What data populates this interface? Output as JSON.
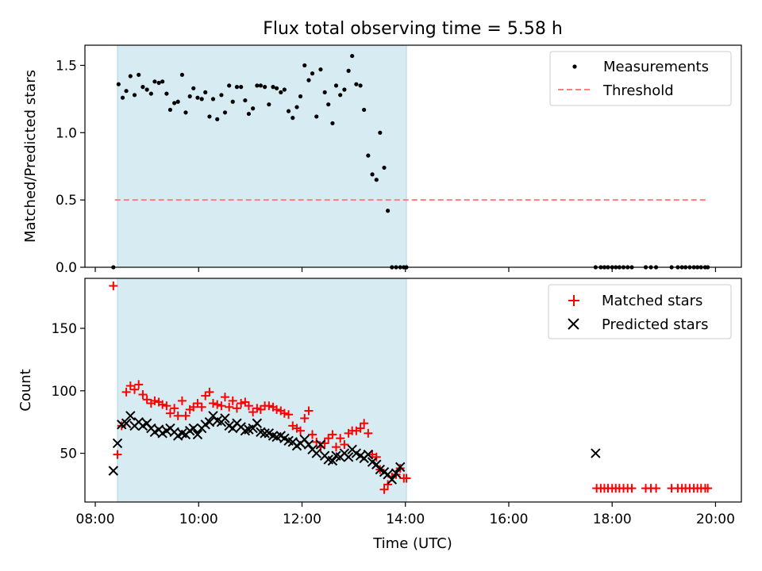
{
  "title": "Flux total observing time = 5.58 h",
  "chart_data": [
    {
      "type": "scatter",
      "ylabel": "Matched/Predicted stars",
      "xlim": [
        7.8,
        20.5
      ],
      "ylim": [
        0.0,
        1.65
      ],
      "yticks": [
        0.0,
        0.5,
        1.0,
        1.5
      ],
      "ytick_labels": [
        "0.0",
        "0.5",
        "1.0",
        "1.5"
      ],
      "legend_position": "top-right",
      "shaded_interval": [
        8.43,
        14.02
      ],
      "threshold": {
        "name": "Threshold",
        "value": 0.5,
        "x_range": [
          8.38,
          19.85
        ],
        "color": "#ff7f7f"
      },
      "series": [
        {
          "name": "Measurements",
          "color": "#000000",
          "marker": "dot",
          "x": [
            8.35,
            8.45,
            8.53,
            8.6,
            8.68,
            8.76,
            8.84,
            8.92,
            9.0,
            9.08,
            9.15,
            9.23,
            9.3,
            9.38,
            9.45,
            9.53,
            9.6,
            9.68,
            9.75,
            9.83,
            9.9,
            9.98,
            10.06,
            10.13,
            10.21,
            10.28,
            10.36,
            10.44,
            10.51,
            10.59,
            10.66,
            10.74,
            10.82,
            10.9,
            10.97,
            11.05,
            11.13,
            11.2,
            11.28,
            11.36,
            11.44,
            11.51,
            11.59,
            11.66,
            11.74,
            11.82,
            11.9,
            11.97,
            12.05,
            12.13,
            12.2,
            12.28,
            12.36,
            12.44,
            12.51,
            12.59,
            12.66,
            12.74,
            12.82,
            12.9,
            12.97,
            13.05,
            13.13,
            13.2,
            13.28,
            13.36,
            13.44,
            13.51,
            13.59,
            13.66,
            13.74,
            13.82,
            13.9,
            13.97,
            14.02,
            17.68,
            17.78,
            17.85,
            17.92,
            18.0,
            18.07,
            18.14,
            18.22,
            18.3,
            18.38,
            18.65,
            18.75,
            18.85,
            19.15,
            19.27,
            19.35,
            19.42,
            19.5,
            19.58,
            19.65,
            19.72,
            19.8,
            19.85
          ],
          "y": [
            0.0,
            1.36,
            1.26,
            1.31,
            1.42,
            1.28,
            1.43,
            1.34,
            1.32,
            1.29,
            1.38,
            1.37,
            1.38,
            1.29,
            1.17,
            1.22,
            1.23,
            1.43,
            1.15,
            1.27,
            1.33,
            1.26,
            1.25,
            1.3,
            1.12,
            1.25,
            1.1,
            1.28,
            1.15,
            1.35,
            1.23,
            1.34,
            1.34,
            1.24,
            1.14,
            1.18,
            1.35,
            1.35,
            1.34,
            1.21,
            1.34,
            1.33,
            1.3,
            1.32,
            1.16,
            1.11,
            1.19,
            1.27,
            1.5,
            1.39,
            1.44,
            1.12,
            1.47,
            1.3,
            1.21,
            1.07,
            1.35,
            1.28,
            1.32,
            1.46,
            1.57,
            1.36,
            1.35,
            1.17,
            0.83,
            0.69,
            0.65,
            1.0,
            0.74,
            0.42,
            0.0,
            0.0,
            0.0,
            0.0,
            0.0,
            0.0,
            0.0,
            0.0,
            0.0,
            0.0,
            0.0,
            0.0,
            0.0,
            0.0,
            0.0,
            0.0,
            0.0,
            0.0,
            0.0,
            0.0,
            0.0,
            0.0,
            0.0,
            0.0,
            0.0,
            0.0,
            0.0,
            0.0
          ]
        }
      ]
    },
    {
      "type": "scatter",
      "xlabel": "Time (UTC)",
      "ylabel": "Count",
      "xlim": [
        7.8,
        20.5
      ],
      "ylim": [
        11,
        190
      ],
      "xticks": [
        8,
        10,
        12,
        14,
        16,
        18,
        20
      ],
      "xtick_labels": [
        "08:00",
        "10:00",
        "12:00",
        "14:00",
        "16:00",
        "18:00",
        "20:00"
      ],
      "yticks": [
        50,
        100,
        150
      ],
      "ytick_labels": [
        "50",
        "100",
        "150"
      ],
      "legend_position": "top-right",
      "shaded_interval": [
        8.43,
        14.02
      ],
      "series": [
        {
          "name": "Matched stars",
          "color": "#ff0000",
          "marker": "plus",
          "x": [
            8.35,
            8.43,
            8.51,
            8.6,
            8.68,
            8.76,
            8.84,
            8.92,
            9.0,
            9.08,
            9.15,
            9.23,
            9.3,
            9.38,
            9.45,
            9.53,
            9.6,
            9.68,
            9.75,
            9.83,
            9.9,
            9.98,
            10.06,
            10.13,
            10.21,
            10.28,
            10.36,
            10.44,
            10.51,
            10.59,
            10.66,
            10.74,
            10.82,
            10.9,
            10.97,
            11.05,
            11.13,
            11.2,
            11.28,
            11.36,
            11.44,
            11.51,
            11.59,
            11.66,
            11.74,
            11.82,
            11.9,
            11.97,
            12.05,
            12.13,
            12.2,
            12.28,
            12.36,
            12.44,
            12.51,
            12.59,
            12.66,
            12.74,
            12.82,
            12.9,
            12.97,
            13.05,
            13.13,
            13.2,
            13.28,
            13.36,
            13.44,
            13.51,
            13.59,
            13.66,
            13.74,
            13.82,
            13.9,
            13.97,
            14.02,
            17.7,
            17.78,
            17.85,
            17.92,
            18.0,
            18.07,
            18.14,
            18.22,
            18.3,
            18.38,
            18.65,
            18.75,
            18.85,
            19.15,
            19.27,
            19.35,
            19.42,
            19.5,
            19.58,
            19.65,
            19.72,
            19.8,
            19.85
          ],
          "y": [
            184,
            49,
            72,
            99,
            104,
            101,
            105,
            97,
            93,
            90,
            92,
            91,
            89,
            88,
            82,
            86,
            80,
            92,
            80,
            85,
            87,
            90,
            87,
            96,
            99,
            90,
            89,
            88,
            95,
            87,
            92,
            86,
            90,
            91,
            88,
            83,
            86,
            85,
            88,
            88,
            87,
            85,
            84,
            82,
            81,
            72,
            70,
            68,
            78,
            84,
            65,
            59,
            55,
            58,
            62,
            65,
            55,
            62,
            57,
            66,
            68,
            68,
            70,
            74,
            66,
            49,
            47,
            37,
            21,
            25,
            31,
            33,
            38,
            30,
            30,
            22,
            22,
            22,
            22,
            22,
            22,
            22,
            22,
            22,
            22,
            22,
            22,
            22,
            22,
            22,
            22,
            22,
            22,
            22,
            22,
            22,
            22,
            22
          ],
          "note": ""
        },
        {
          "name": "Predicted stars",
          "color": "#000000",
          "marker": "x",
          "x": [
            8.35,
            8.43,
            8.51,
            8.6,
            8.68,
            8.76,
            8.84,
            8.92,
            9.0,
            9.08,
            9.15,
            9.23,
            9.3,
            9.38,
            9.45,
            9.53,
            9.6,
            9.68,
            9.75,
            9.83,
            9.9,
            9.98,
            10.06,
            10.13,
            10.21,
            10.28,
            10.36,
            10.44,
            10.51,
            10.59,
            10.66,
            10.74,
            10.82,
            10.9,
            10.97,
            11.05,
            11.13,
            11.2,
            11.28,
            11.36,
            11.44,
            11.51,
            11.59,
            11.66,
            11.74,
            11.82,
            11.9,
            11.97,
            12.05,
            12.13,
            12.2,
            12.28,
            12.36,
            12.44,
            12.51,
            12.59,
            12.66,
            12.74,
            12.82,
            12.9,
            12.97,
            13.05,
            13.13,
            13.2,
            13.28,
            13.36,
            13.44,
            13.51,
            13.59,
            13.66,
            13.74,
            13.82,
            13.9,
            17.68
          ],
          "y": [
            36,
            58,
            73,
            74,
            80,
            72,
            75,
            72,
            74,
            70,
            67,
            69,
            66,
            68,
            70,
            67,
            64,
            66,
            65,
            68,
            70,
            65,
            70,
            73,
            75,
            80,
            76,
            75,
            78,
            72,
            70,
            74,
            71,
            68,
            69,
            70,
            74,
            67,
            66,
            66,
            64,
            63,
            64,
            62,
            60,
            59,
            56,
            58,
            61,
            57,
            53,
            50,
            57,
            48,
            45,
            44,
            48,
            47,
            50,
            47,
            53,
            50,
            48,
            46,
            49,
            43,
            41,
            37,
            35,
            33,
            29,
            34,
            39,
            50
          ]
        }
      ]
    }
  ]
}
